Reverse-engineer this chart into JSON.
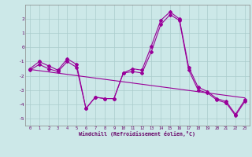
{
  "xlabel": "Windchill (Refroidissement éolien,°C)",
  "x": [
    0,
    1,
    2,
    3,
    4,
    5,
    6,
    7,
    8,
    9,
    10,
    11,
    12,
    13,
    14,
    15,
    16,
    17,
    18,
    19,
    20,
    21,
    22,
    23
  ],
  "line1": [
    -1.5,
    -1.0,
    -1.3,
    -1.6,
    -0.8,
    -1.2,
    -4.3,
    -3.5,
    -3.6,
    -3.6,
    -1.8,
    -1.5,
    -1.6,
    0.1,
    1.9,
    2.5,
    2.0,
    -1.4,
    -2.8,
    -3.1,
    -3.6,
    -3.8,
    -4.7,
    -3.7
  ],
  "line2": [
    -1.6,
    -1.2,
    -1.5,
    -1.7,
    -1.0,
    -1.4,
    -4.3,
    -3.5,
    -3.6,
    -3.6,
    -1.8,
    -1.7,
    -1.8,
    -0.3,
    1.6,
    2.3,
    1.9,
    -1.6,
    -3.0,
    -3.2,
    -3.7,
    -3.9,
    -4.8,
    -3.8
  ],
  "trend_x": [
    0,
    23
  ],
  "trend_y": [
    -1.55,
    -3.55
  ],
  "line_color": "#990099",
  "bg_color": "#cce8e8",
  "grid_color": "#aacccc",
  "ylim": [
    -5.5,
    3.0
  ],
  "xlim": [
    -0.5,
    23.5
  ],
  "yticks": [
    -5,
    -4,
    -3,
    -2,
    -1,
    0,
    1,
    2
  ],
  "ytick_labels": [
    "-5",
    "-4",
    "-3",
    "-2",
    "-1",
    "0",
    "1",
    "2"
  ]
}
